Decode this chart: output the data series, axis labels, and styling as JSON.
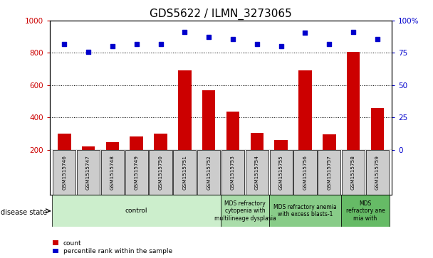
{
  "title": "GDS5622 / ILMN_3273065",
  "samples": [
    "GSM1515746",
    "GSM1515747",
    "GSM1515748",
    "GSM1515749",
    "GSM1515750",
    "GSM1515751",
    "GSM1515752",
    "GSM1515753",
    "GSM1515754",
    "GSM1515755",
    "GSM1515756",
    "GSM1515757",
    "GSM1515758",
    "GSM1515759"
  ],
  "counts": [
    300,
    220,
    245,
    280,
    300,
    690,
    570,
    435,
    305,
    260,
    690,
    295,
    805,
    460
  ],
  "percentiles": [
    82,
    76,
    80,
    82,
    82,
    91,
    87.5,
    85.5,
    82,
    80,
    90.5,
    82,
    91,
    85.5
  ],
  "ylim_left": [
    200,
    1000
  ],
  "ylim_right": [
    0,
    100
  ],
  "yticks_left": [
    200,
    400,
    600,
    800,
    1000
  ],
  "yticks_right": [
    0,
    25,
    50,
    75,
    100
  ],
  "bar_color": "#cc0000",
  "dot_color": "#0000cc",
  "title_fontsize": 11,
  "disease_state_groups": [
    {
      "label": "control",
      "start": 0,
      "end": 7,
      "color": "#cceecc"
    },
    {
      "label": "MDS refractory\ncytopenia with\nmultilineage dysplasia",
      "start": 7,
      "end": 9,
      "color": "#aaddaa"
    },
    {
      "label": "MDS refractory anemia\nwith excess blasts-1",
      "start": 9,
      "end": 12,
      "color": "#88cc88"
    },
    {
      "label": "MDS\nrefractory ane\nmia with",
      "start": 12,
      "end": 14,
      "color": "#66bb66"
    }
  ],
  "sample_box_color": "#cccccc",
  "legend_count_label": "count",
  "legend_pct_label": "percentile rank within the sample"
}
